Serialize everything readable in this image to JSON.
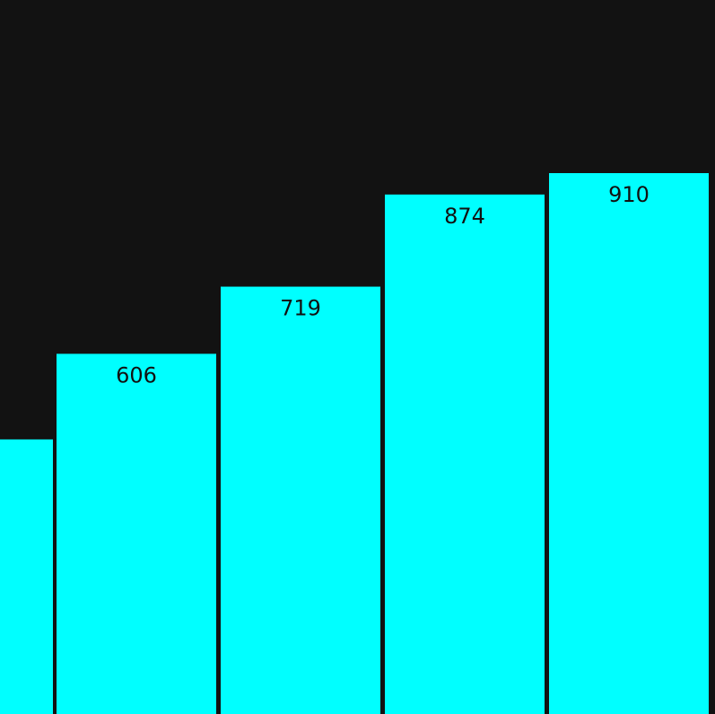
{
  "chart_data": {
    "type": "bar",
    "values": [
      null,
      606,
      719,
      874,
      910
    ],
    "value_labels": [
      "",
      "606",
      "719",
      "874",
      "910"
    ],
    "bar_color": "#00ffff",
    "background_color": "#121212",
    "label_color": "#111111",
    "grid": false
  }
}
